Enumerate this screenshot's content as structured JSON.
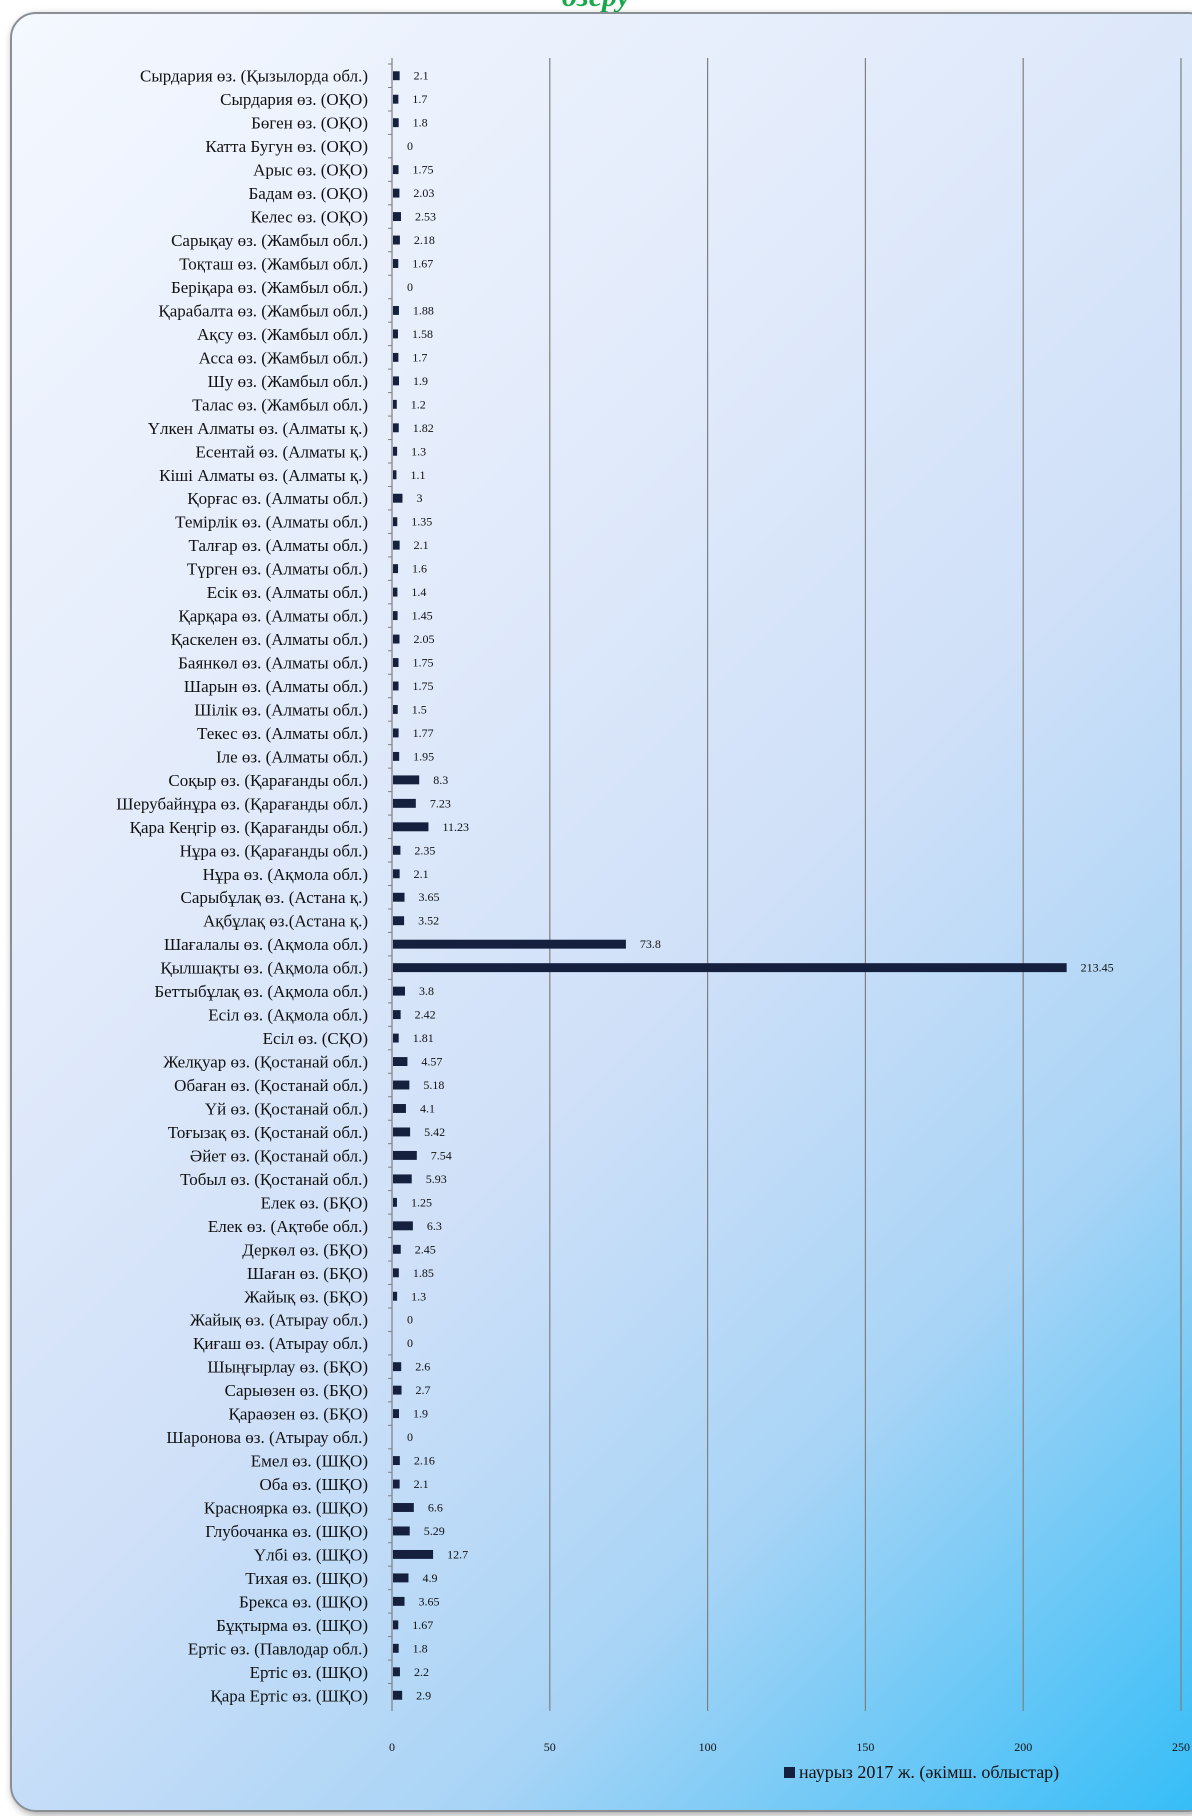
{
  "page_title_fragment": "өзеру",
  "chart_data": {
    "type": "bar",
    "orientation": "horizontal",
    "categories": [
      "Сырдария өз. (Қызылорда обл.)",
      "Сырдария өз. (ОҚО)",
      "Бөген өз. (ОҚО)",
      "Катта Бугун өз. (ОҚО)",
      "Арыс өз. (ОҚО)",
      "Бадам өз. (ОҚО)",
      "Келес өз. (ОҚО)",
      "Сарықау өз. (Жамбыл обл.)",
      "Тоқташ өз. (Жамбыл обл.)",
      "Беріқара өз. (Жамбыл обл.)",
      "Қарабалта өз. (Жамбыл обл.)",
      "Ақсу өз. (Жамбыл обл.)",
      "Асса өз. (Жамбыл обл.)",
      "Шу өз. (Жамбыл обл.)",
      "Талас өз. (Жамбыл обл.)",
      "Үлкен Алматы өз. (Алматы қ.)",
      "Есентай өз. (Алматы қ.)",
      "Кіші Алматы өз. (Алматы қ.)",
      "Қорғас өз. (Алматы обл.)",
      "Темірлік өз. (Алматы обл.)",
      "Талғар өз. (Алматы обл.)",
      "Түрген өз. (Алматы обл.)",
      "Есік өз. (Алматы обл.)",
      "Қарқара өз. (Алматы обл.)",
      "Қаскелен өз. (Алматы обл.)",
      "Баянкөл өз. (Алматы обл.)",
      "Шарын өз. (Алматы обл.)",
      "Шілік өз. (Алматы обл.)",
      "Текес өз. (Алматы обл.)",
      "Іле өз. (Алматы обл.)",
      "Соқыр өз. (Қарағанды обл.)",
      "Шерубайнұра өз. (Қарағанды обл.)",
      "Қара Кеңгір өз. (Қарағанды обл.)",
      "Нұра өз. (Қарағанды обл.)",
      "Нұра өз. (Ақмола обл.)",
      "Сарыбұлақ өз. (Астана қ.)",
      "Ақбұлақ өз.(Астана қ.)",
      "Шағалалы өз. (Ақмола обл.)",
      "Қылшақты өз. (Ақмола обл.)",
      "Беттыбұлақ өз. (Ақмола обл.)",
      "Есіл өз. (Ақмола обл.)",
      "Есіл өз. (СҚО)",
      "Желқуар өз. (Қостанай обл.)",
      "Обаған өз. (Қостанай обл.)",
      "Үй өз. (Қостанай обл.)",
      "Тоғызақ өз. (Қостанай обл.)",
      "Әйет өз. (Қостанай обл.)",
      "Тобыл өз. (Қостанай обл.)",
      "Елек өз. (БҚО)",
      "Елек өз. (Ақтөбе обл.)",
      "Деркөл өз. (БҚО)",
      "Шаған өз. (БҚО)",
      "Жайық өз. (БҚО)",
      "Жайық өз. (Атырау обл.)",
      "Қиғаш өз. (Атырау обл.)",
      "Шыңғырлау өз. (БҚО)",
      "Сарыөзен өз. (БҚО)",
      "Қараөзен өз. (БҚО)",
      "Шаронова өз. (Атырау обл.)",
      "Емел өз. (ШҚО)",
      "Оба өз. (ШҚО)",
      "Красноярка өз. (ШҚО)",
      "Глубочанка өз. (ШҚО)",
      "Үлбі өз. (ШҚО)",
      "Тихая өз. (ШҚО)",
      "Брекса өз. (ШҚО)",
      "Бұқтырма өз. (ШҚО)",
      "Ертіс өз. (Павлодар обл.)",
      "Ертіс өз. (ШҚО)",
      "Қара Ертіс өз. (ШҚО)"
    ],
    "values": [
      2.1,
      1.7,
      1.8,
      0,
      1.75,
      2.03,
      2.53,
      2.18,
      1.67,
      0,
      1.88,
      1.58,
      1.7,
      1.9,
      1.2,
      1.82,
      1.3,
      1.1,
      3,
      1.35,
      2.1,
      1.6,
      1.4,
      1.45,
      2.05,
      1.75,
      1.75,
      1.5,
      1.77,
      1.95,
      8.3,
      7.23,
      11.23,
      2.35,
      2.1,
      3.65,
      3.52,
      73.8,
      213.45,
      3.8,
      2.42,
      1.81,
      4.57,
      5.18,
      4.1,
      5.42,
      7.54,
      5.93,
      1.25,
      6.3,
      2.45,
      1.85,
      1.3,
      0,
      0,
      2.6,
      2.7,
      1.9,
      0,
      2.16,
      2.1,
      6.6,
      5.29,
      12.7,
      4.9,
      3.65,
      1.67,
      1.8,
      2.2,
      2.9
    ],
    "value_labels": [
      "2.1",
      "1.7",
      "1.8",
      "0",
      "1.75",
      "2.03",
      "2.53",
      "2.18",
      "1.67",
      "0",
      "1.88",
      "1.58",
      "1.7",
      "1.9",
      "1.2",
      "1.82",
      "1.3",
      "1.1",
      "3",
      "1.35",
      "2.1",
      "1.6",
      "1.4",
      "1.45",
      "2.05",
      "1.75",
      "1.75",
      "1.5",
      "1.77",
      "1.95",
      "8.3",
      "7.23",
      "11.23",
      "2.35",
      "2.1",
      "3.65",
      "3.52",
      "73.8",
      "213.45",
      "3.8",
      "2.42",
      "1.81",
      "4.57",
      "5.18",
      "4.1",
      "5.42",
      "7.54",
      "5.93",
      "1.25",
      "6.3",
      "2.45",
      "1.85",
      "1.3",
      "0",
      "0",
      "2.6",
      "2.7",
      "1.9",
      "0",
      "2.16",
      "2.1",
      "6.6",
      "5.29",
      "12.7",
      "4.9",
      "3.65",
      "1.67",
      "1.8",
      "2.2",
      "2.9"
    ],
    "series_name": "наурыз 2017 ж. (әкімш. облыстар)",
    "xlim": [
      0,
      250
    ],
    "xticks": [
      0,
      50,
      100,
      150,
      200,
      250
    ],
    "grid": "vertical",
    "legend_position": "bottom-right",
    "bar_color": "#15203f",
    "gridline_color": "#7f7f7f"
  }
}
